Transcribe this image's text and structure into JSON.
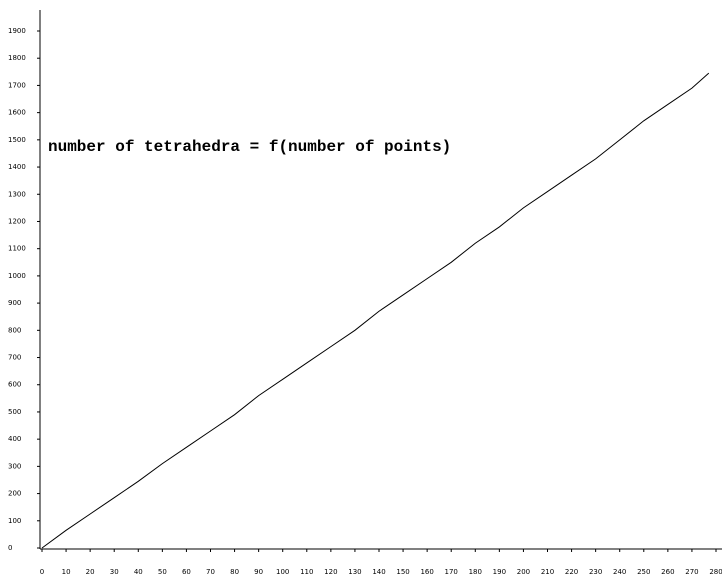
{
  "chart_data": {
    "type": "line",
    "title": "number of tetrahedra = f(number of points)",
    "x": [
      0,
      10,
      20,
      30,
      40,
      50,
      60,
      70,
      80,
      90,
      100,
      110,
      120,
      130,
      140,
      150,
      160,
      170,
      180,
      190,
      200,
      210,
      220,
      230,
      240,
      250,
      260,
      270,
      277
    ],
    "series": [
      {
        "name": "tetrahedra",
        "color": "#000000",
        "values": [
          0,
          65,
          125,
          185,
          245,
          310,
          370,
          430,
          490,
          560,
          620,
          680,
          740,
          800,
          870,
          930,
          990,
          1050,
          1120,
          1180,
          1250,
          1310,
          1370,
          1430,
          1500,
          1570,
          1630,
          1690,
          1745
        ]
      }
    ],
    "xlim": [
      0,
      280
    ],
    "xticks": [
      0,
      10,
      20,
      30,
      40,
      50,
      60,
      70,
      80,
      90,
      100,
      110,
      120,
      130,
      140,
      150,
      160,
      170,
      180,
      190,
      200,
      210,
      220,
      230,
      240,
      250,
      260,
      270,
      280
    ],
    "ylim": [
      0,
      1900
    ],
    "yticks": [
      0,
      100,
      200,
      300,
      400,
      500,
      600,
      700,
      800,
      900,
      1000,
      1100,
      1200,
      1300,
      1400,
      1500,
      1600,
      1700,
      1800,
      1900
    ]
  }
}
